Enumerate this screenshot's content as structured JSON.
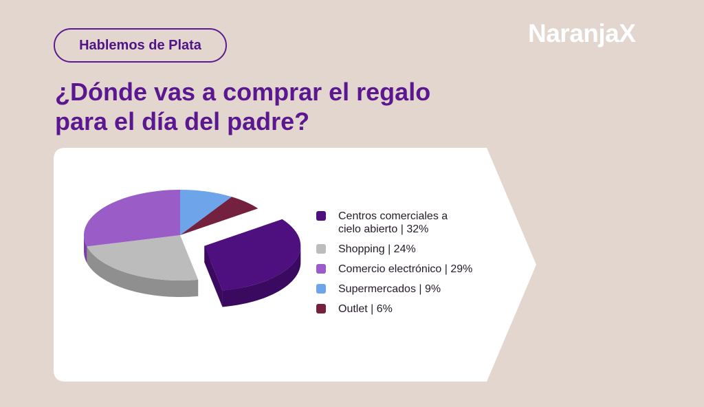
{
  "header": {
    "pill_label": "Hablemos de Plata",
    "brand": "NaranjaX",
    "title_line1": "¿Dónde vas a comprar el regalo",
    "title_line2": "para el día del padre?"
  },
  "colors": {
    "background": "#e2d6ce",
    "card": "#ffffff",
    "accent": "#5a1790"
  },
  "chart_data": {
    "type": "pie",
    "title": "¿Dónde vas a comprar el regalo para el día del padre?",
    "slices": [
      {
        "label": "Centros comerciales a cielo abierto | 32%",
        "label_line1": "Centros comerciales a",
        "label_line2": "cielo abierto | 32%",
        "value": 32,
        "color": "#4e0f7f",
        "side": "#3a0960",
        "exploded": true
      },
      {
        "label": "Shopping | 24%",
        "value": 24,
        "color": "#bcbcbc",
        "side": "#8f8f8f",
        "exploded": false
      },
      {
        "label": "Comercio electrónico | 29%",
        "value": 29,
        "color": "#9a5cc6",
        "side": "#7a3fa6",
        "exploded": false
      },
      {
        "label": "Supermercados | 9%",
        "value": 9,
        "color": "#6ea4ea",
        "side": "#4b7fc4",
        "exploded": false
      },
      {
        "label": "Outlet | 6%",
        "value": 6,
        "color": "#73213f",
        "side": "#52142b",
        "exploded": false
      }
    ],
    "legend_position": "right"
  }
}
